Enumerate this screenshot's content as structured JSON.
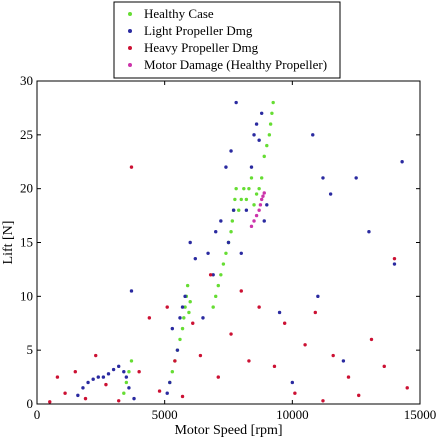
{
  "chart_data": {
    "type": "scatter",
    "xlabel": "Motor Speed [rpm]",
    "ylabel": "Lift [N]",
    "xlim": [
      0,
      15000
    ],
    "ylim": [
      0,
      30
    ],
    "xticks": [
      0,
      5000,
      10000,
      15000
    ],
    "yticks": [
      0,
      5,
      10,
      15,
      20,
      25,
      30
    ],
    "grid": false,
    "legend_position": "top",
    "series": [
      {
        "name": "Healthy Case",
        "color": "#66dd33",
        "x": [
          3400,
          3500,
          3600,
          3700,
          5200,
          5300,
          5400,
          5500,
          5600,
          5700,
          5750,
          5800,
          5850,
          5900,
          5950,
          6000,
          6900,
          7000,
          7100,
          7200,
          7300,
          7400,
          7500,
          7600,
          7650,
          7700,
          7750,
          7800,
          7900,
          8000,
          8100,
          8200,
          8300,
          8400,
          8500,
          8600,
          8700,
          8800,
          8900,
          9000,
          9100,
          9150,
          9200,
          9250
        ],
        "y": [
          1.0,
          2.0,
          3.0,
          4.0,
          2.0,
          3.0,
          4.0,
          5.0,
          6.0,
          7.0,
          8.0,
          9.0,
          10.0,
          11.0,
          8.5,
          9.5,
          9.0,
          10.0,
          11.0,
          12.0,
          13.0,
          14.0,
          15.0,
          16.0,
          17.0,
          18.0,
          19.0,
          20.0,
          18.0,
          19.0,
          20.0,
          19.0,
          20.0,
          21.0,
          18.5,
          19.5,
          20.0,
          21.0,
          23.0,
          24.0,
          25.0,
          26.0,
          27.0,
          28.0
        ]
      },
      {
        "name": "Light Propeller Dmg",
        "color": "#2a2aa0",
        "x": [
          1600,
          1800,
          2000,
          2200,
          2400,
          2600,
          2800,
          3000,
          3200,
          3400,
          3500,
          3600,
          3700,
          3800,
          5100,
          5200,
          5300,
          5500,
          5600,
          5700,
          5800,
          6000,
          6200,
          6500,
          6700,
          6900,
          7000,
          7200,
          7400,
          7500,
          7600,
          7700,
          7800,
          8000,
          8200,
          8400,
          8500,
          8600,
          8700,
          8800,
          8900,
          9000,
          9500,
          10000,
          10800,
          11000,
          11200,
          11500,
          12000,
          12500,
          13000,
          14000,
          14300
        ],
        "y": [
          0.8,
          1.5,
          2.0,
          2.3,
          2.5,
          2.5,
          2.8,
          3.2,
          3.5,
          3.0,
          2.5,
          1.5,
          10.5,
          0.5,
          1.0,
          2.0,
          7.0,
          5.0,
          8.0,
          9.0,
          10.0,
          15.0,
          13.5,
          8.0,
          14.0,
          12.0,
          16.0,
          17.0,
          22.0,
          15.0,
          23.5,
          18.0,
          28.0,
          14.0,
          18.0,
          22.0,
          25.0,
          26.0,
          24.5,
          27.0,
          17.0,
          18.5,
          8.5,
          2.0,
          25.0,
          10.0,
          21.0,
          19.5,
          4.0,
          21.0,
          16.0,
          13.0,
          22.5
        ]
      },
      {
        "name": "Heavy Propeller Dmg",
        "color": "#cc1133",
        "x": [
          500,
          800,
          1100,
          1500,
          1900,
          2300,
          2700,
          3200,
          3700,
          4000,
          4400,
          4800,
          5100,
          5400,
          5700,
          6100,
          6400,
          6800,
          7100,
          7600,
          8000,
          8300,
          8700,
          9300,
          9700,
          10100,
          10500,
          10900,
          11200,
          11600,
          12200,
          12600,
          13100,
          13600,
          14000,
          14500
        ],
        "y": [
          0.2,
          2.5,
          1.0,
          3.0,
          0.5,
          4.5,
          1.8,
          0.3,
          22.0,
          3.0,
          8.0,
          1.2,
          9.0,
          4.0,
          0.7,
          7.5,
          4.5,
          12.0,
          2.5,
          6.5,
          10.5,
          4.0,
          9.0,
          3.5,
          7.5,
          1.0,
          5.5,
          8.5,
          0.3,
          4.5,
          2.5,
          0.8,
          6.0,
          3.5,
          13.5,
          1.5
        ]
      },
      {
        "name": "Motor Damage (Healthy Propeller)",
        "color": "#cc33aa",
        "x": [
          8400,
          8500,
          8600,
          8700,
          8750,
          8800,
          8850,
          8900
        ],
        "y": [
          16.5,
          17.0,
          17.5,
          18.0,
          18.5,
          19.0,
          19.3,
          19.6
        ]
      }
    ]
  }
}
